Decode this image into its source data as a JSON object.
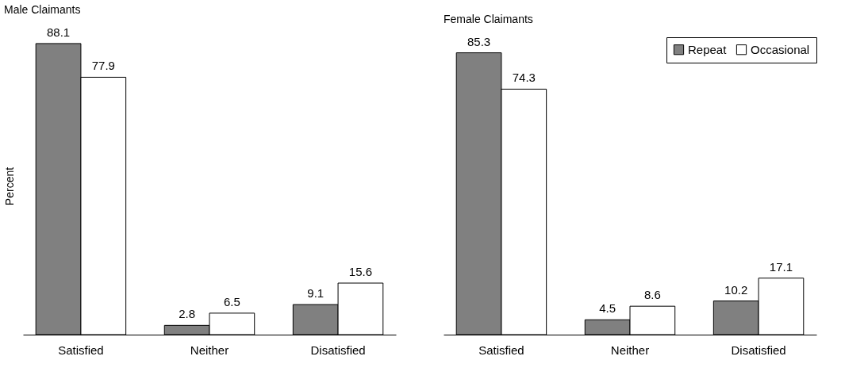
{
  "chart_data": [
    {
      "type": "bar",
      "title": "Male Claimants",
      "ylabel": "Percent",
      "categories": [
        "Satisfied",
        "Neither",
        "Disatisfied"
      ],
      "series": [
        {
          "color": "#808080",
          "values": [
            88.1,
            2.8,
            9.1
          ]
        },
        {
          "color": "#ffffff",
          "values": [
            77.9,
            6.5,
            15.6
          ]
        }
      ],
      "data_labels": true,
      "tick_labels": "x",
      "grid": false,
      "legend": false
    },
    {
      "type": "bar",
      "title": "Female Claimants",
      "categories": [
        "Satisfied",
        "Neither",
        "Disatisfied"
      ],
      "series": [
        {
          "name": "Repeat",
          "color": "#808080",
          "values": [
            85.3,
            4.5,
            10.2
          ]
        },
        {
          "name": "Occasional",
          "color": "#ffffff",
          "values": [
            74.3,
            8.6,
            17.1
          ]
        }
      ],
      "data_labels": true,
      "tick_labels": "x",
      "grid": false,
      "legend": "top right"
    }
  ]
}
